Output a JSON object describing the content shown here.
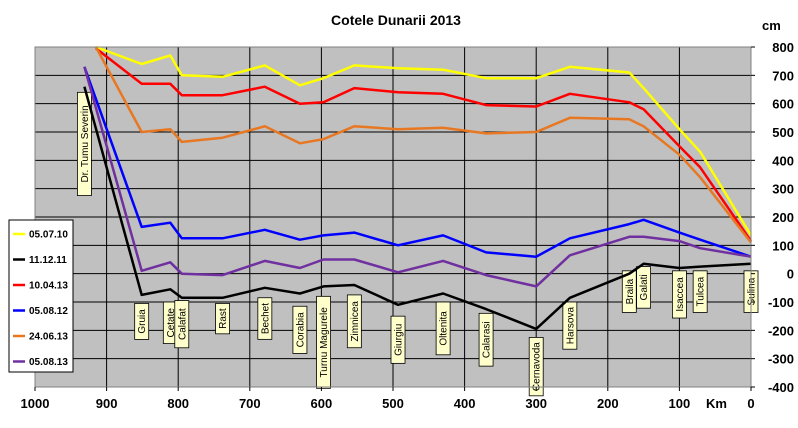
{
  "chart_data": {
    "type": "line",
    "title": "Cotele Dunarii 2013",
    "xlabel": "Km",
    "ylabel": "cm",
    "xlim": [
      1000,
      0
    ],
    "ylim": [
      -400,
      800
    ],
    "xticks": [
      1000,
      900,
      800,
      700,
      600,
      500,
      400,
      300,
      200,
      100,
      0
    ],
    "yticks": [
      800,
      700,
      600,
      500,
      400,
      300,
      200,
      100,
      0,
      -100,
      -200,
      -300,
      -400
    ],
    "grid": true,
    "legend_position": "left",
    "stations": [
      {
        "name": "Dr. Tumu  Severin",
        "km": 931,
        "label_y": 640
      },
      {
        "name": "Gruia",
        "km": 851,
        "label_y": -105
      },
      {
        "name": "Cetate",
        "km": 811,
        "label_y": -100
      },
      {
        "name": "Calafat",
        "km": 795,
        "label_y": -95
      },
      {
        "name": "Rast",
        "km": 738,
        "label_y": -105
      },
      {
        "name": "Bechet",
        "km": 679,
        "label_y": -85
      },
      {
        "name": "Corabia",
        "km": 630,
        "label_y": -115
      },
      {
        "name": "Turnu  Magurele",
        "km": 597,
        "label_y": -80
      },
      {
        "name": "Zimnicea",
        "km": 554,
        "label_y": -75
      },
      {
        "name": "Giurgiu",
        "km": 493,
        "label_y": -150
      },
      {
        "name": "Oltenita",
        "km": 430,
        "label_y": -100
      },
      {
        "name": "Calarasi",
        "km": 370,
        "label_y": -140
      },
      {
        "name": "Cernavoda",
        "km": 300,
        "label_y": -225
      },
      {
        "name": "Harsova",
        "km": 253,
        "label_y": -100
      },
      {
        "name": "Braila",
        "km": 170,
        "label_y": 10
      },
      {
        "name": "Galati",
        "km": 150,
        "label_y": 25
      },
      {
        "name": "Isaccea",
        "km": 100,
        "label_y": 10
      },
      {
        "name": "Tulcea",
        "km": 71,
        "label_y": 10
      },
      {
        "name": "Sulina",
        "km": 0,
        "label_y": 10
      }
    ],
    "series": [
      {
        "name": "05.07.10",
        "color": "#ffff00",
        "x": [
          915,
          851,
          811,
          795,
          738,
          679,
          630,
          597,
          554,
          493,
          430,
          370,
          300,
          253,
          170,
          150,
          100,
          71,
          0
        ],
        "y": [
          800,
          740,
          770,
          700,
          695,
          735,
          665,
          690,
          735,
          725,
          720,
          690,
          690,
          730,
          710,
          655,
          510,
          430,
          135
        ]
      },
      {
        "name": "11.12.11",
        "color": "#000000",
        "x": [
          931,
          851,
          811,
          795,
          738,
          679,
          630,
          597,
          554,
          493,
          430,
          370,
          300,
          253,
          170,
          150,
          100,
          71,
          0
        ],
        "y": [
          660,
          -75,
          -55,
          -85,
          -85,
          -50,
          -70,
          -45,
          -40,
          -110,
          -70,
          -125,
          -195,
          -85,
          0,
          35,
          20,
          25,
          35
        ]
      },
      {
        "name": "10.04.13",
        "color": "#ff0000",
        "x": [
          915,
          851,
          811,
          795,
          738,
          679,
          630,
          597,
          554,
          493,
          430,
          370,
          300,
          253,
          170,
          150,
          100,
          71,
          0
        ],
        "y": [
          795,
          670,
          670,
          630,
          630,
          660,
          600,
          605,
          655,
          640,
          635,
          595,
          590,
          635,
          605,
          580,
          450,
          375,
          115
        ]
      },
      {
        "name": "05.08.12",
        "color": "#0000ff",
        "x": [
          931,
          851,
          811,
          795,
          738,
          679,
          630,
          597,
          554,
          493,
          430,
          370,
          300,
          253,
          170,
          150,
          100,
          71,
          0
        ],
        "y": [
          730,
          165,
          180,
          125,
          125,
          155,
          120,
          135,
          145,
          100,
          135,
          75,
          60,
          125,
          175,
          190,
          145,
          120,
          60
        ]
      },
      {
        "name": "24.06.13",
        "color": "#e87722",
        "x": [
          915,
          851,
          811,
          795,
          738,
          679,
          630,
          597,
          554,
          493,
          430,
          370,
          300,
          253,
          170,
          150,
          100,
          71,
          0
        ],
        "y": [
          800,
          500,
          510,
          465,
          480,
          520,
          460,
          475,
          520,
          510,
          515,
          495,
          500,
          550,
          545,
          520,
          420,
          340,
          110
        ]
      },
      {
        "name": "05.08.13",
        "color": "#7030a0",
        "x": [
          931,
          851,
          811,
          795,
          738,
          679,
          630,
          597,
          554,
          493,
          430,
          370,
          300,
          253,
          170,
          150,
          100,
          71,
          0
        ],
        "y": [
          730,
          10,
          40,
          0,
          -5,
          45,
          20,
          50,
          50,
          5,
          45,
          -5,
          -45,
          65,
          130,
          130,
          115,
          90,
          60
        ]
      }
    ]
  }
}
